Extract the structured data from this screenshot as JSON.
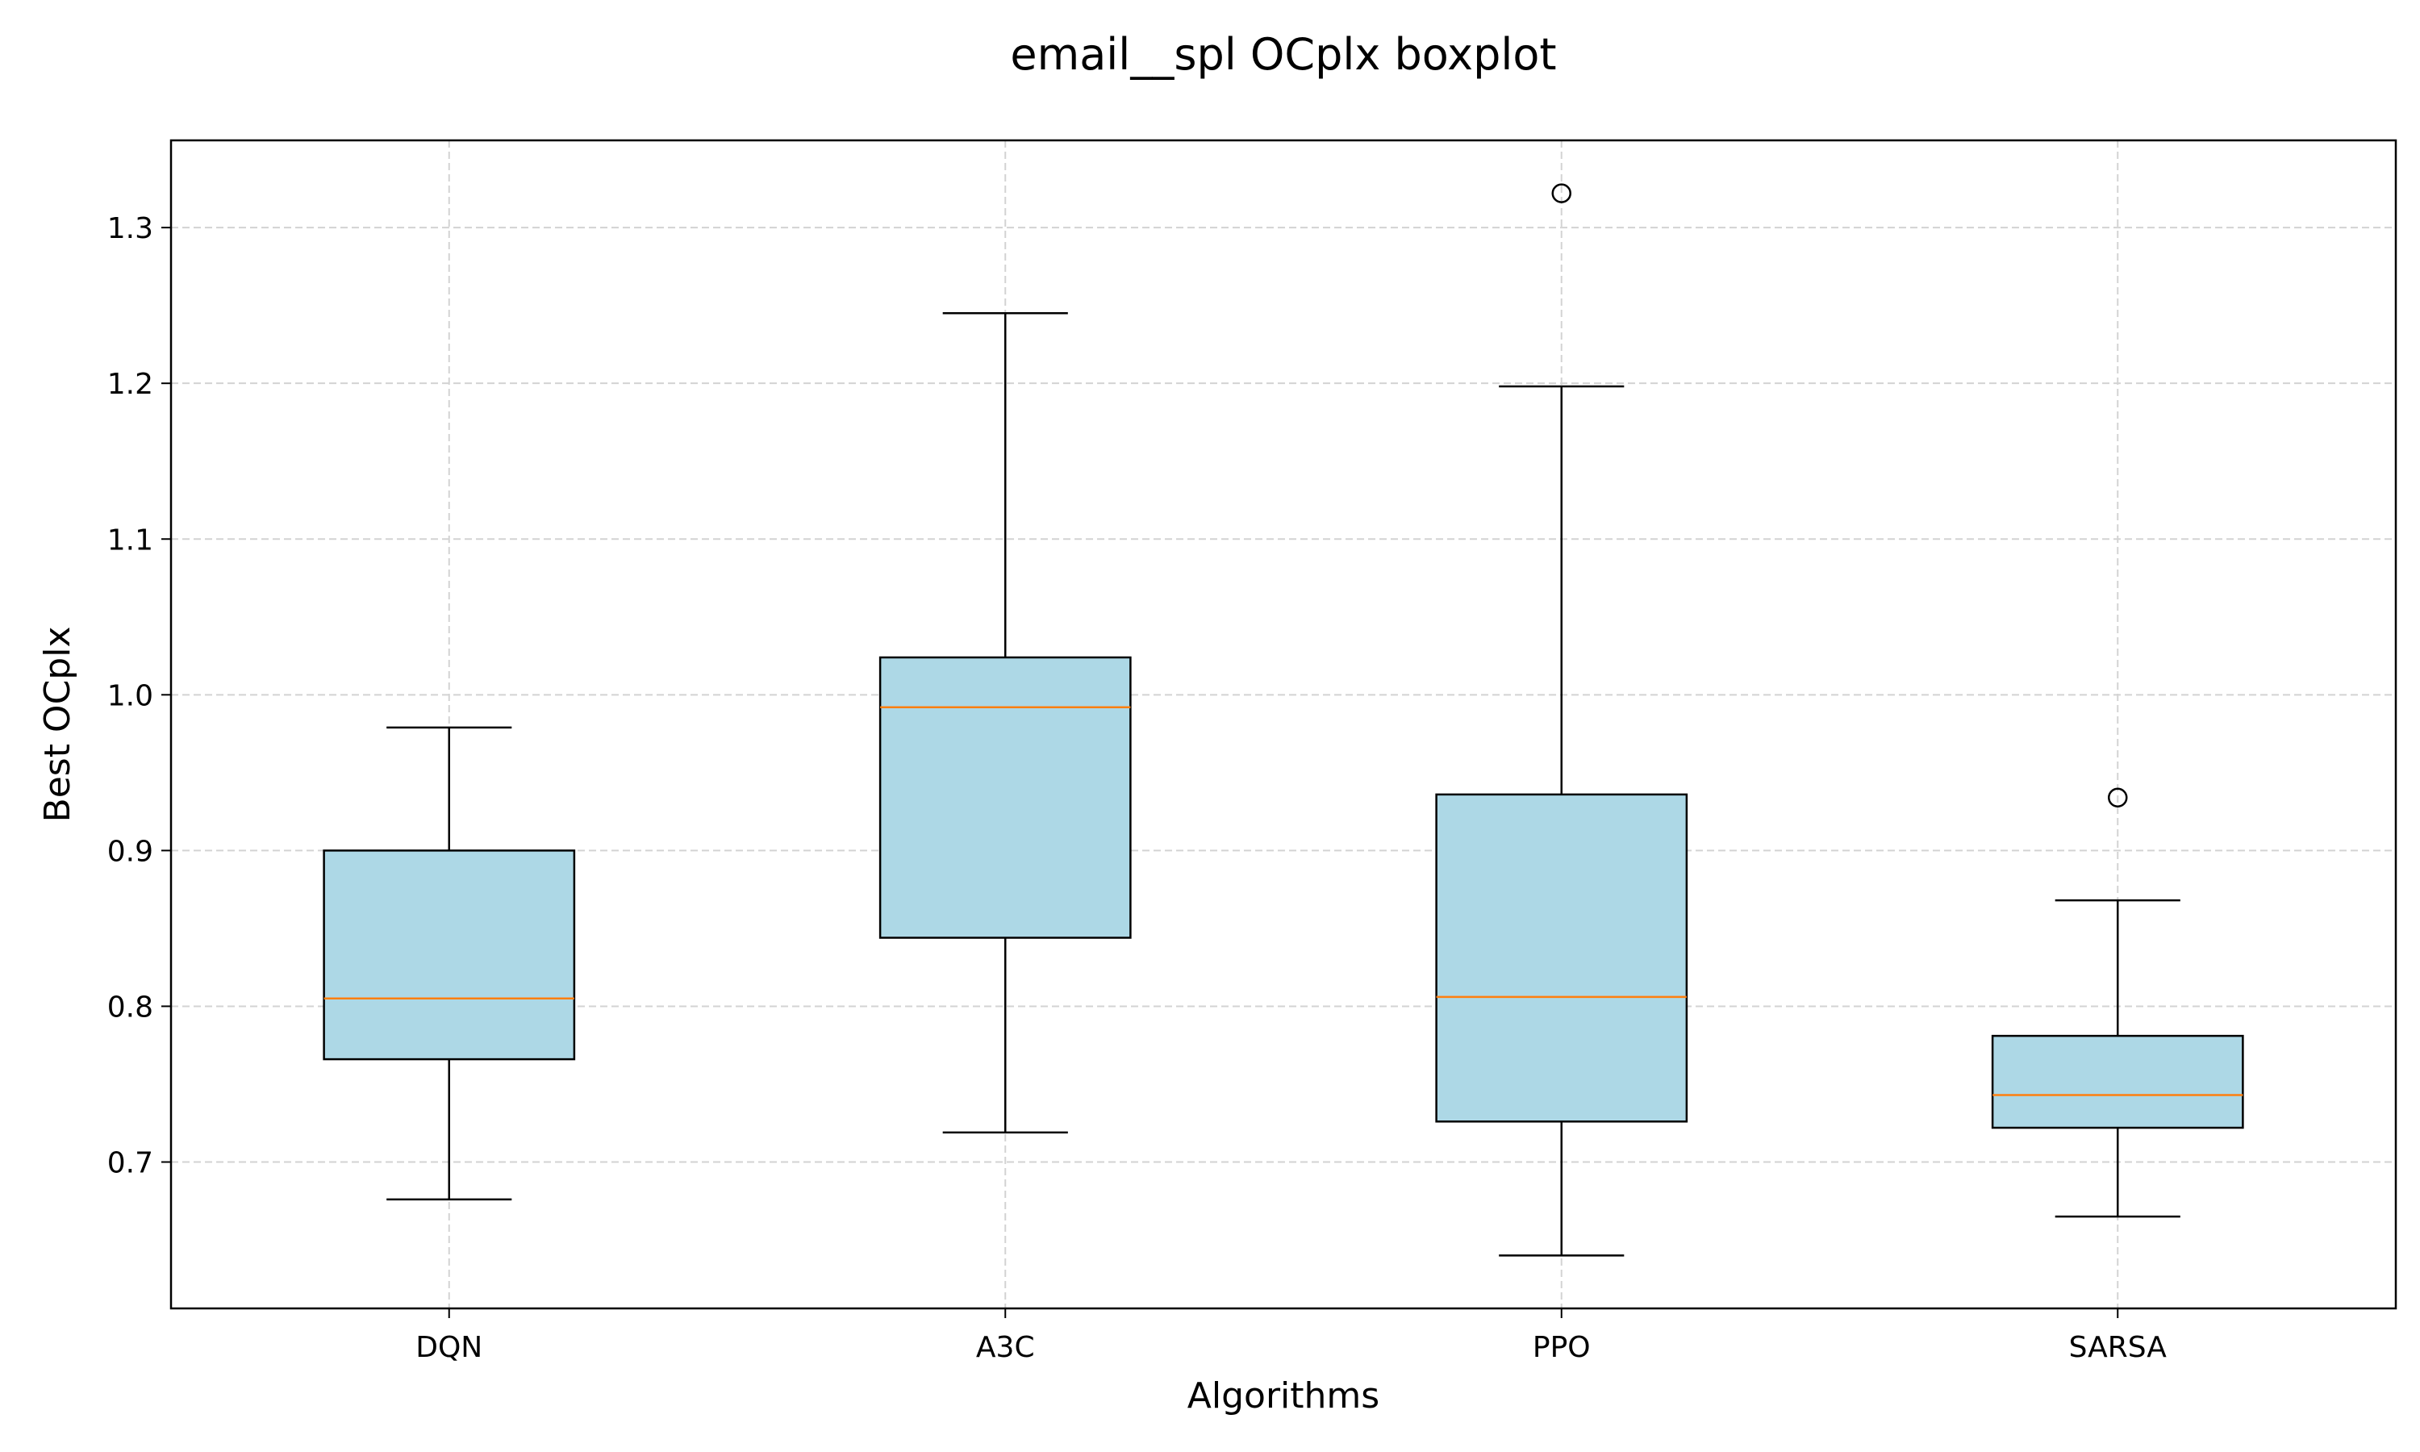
{
  "chart_data": {
    "type": "boxplot",
    "title": "email__spl OCplx boxplot",
    "xlabel": "Algorithms",
    "ylabel": "Best OCplx",
    "categories": [
      "DQN",
      "A3C",
      "PPO",
      "SARSA"
    ],
    "boxes": [
      {
        "name": "DQN",
        "whisker_low": 0.676,
        "q1": 0.766,
        "median": 0.805,
        "q3": 0.9,
        "whisker_high": 0.979,
        "outliers": []
      },
      {
        "name": "A3C",
        "whisker_low": 0.719,
        "q1": 0.844,
        "median": 0.992,
        "q3": 1.024,
        "whisker_high": 1.245,
        "outliers": []
      },
      {
        "name": "PPO",
        "whisker_low": 0.64,
        "q1": 0.726,
        "median": 0.806,
        "q3": 0.936,
        "whisker_high": 1.198,
        "outliers": [
          1.322
        ]
      },
      {
        "name": "SARSA",
        "whisker_low": 0.665,
        "q1": 0.722,
        "median": 0.743,
        "q3": 0.781,
        "whisker_high": 0.868,
        "outliers": [
          0.934
        ]
      }
    ],
    "ylim": [
      0.606,
      1.356
    ],
    "yticks": [
      "0.7",
      "0.8",
      "0.9",
      "1.0",
      "1.1",
      "1.2",
      "1.3"
    ],
    "grid": true,
    "colors": {
      "box_fill": "#add8e6",
      "box_edge": "#000000",
      "median": "#ff7f0e",
      "grid": "#d3d3d3"
    }
  }
}
